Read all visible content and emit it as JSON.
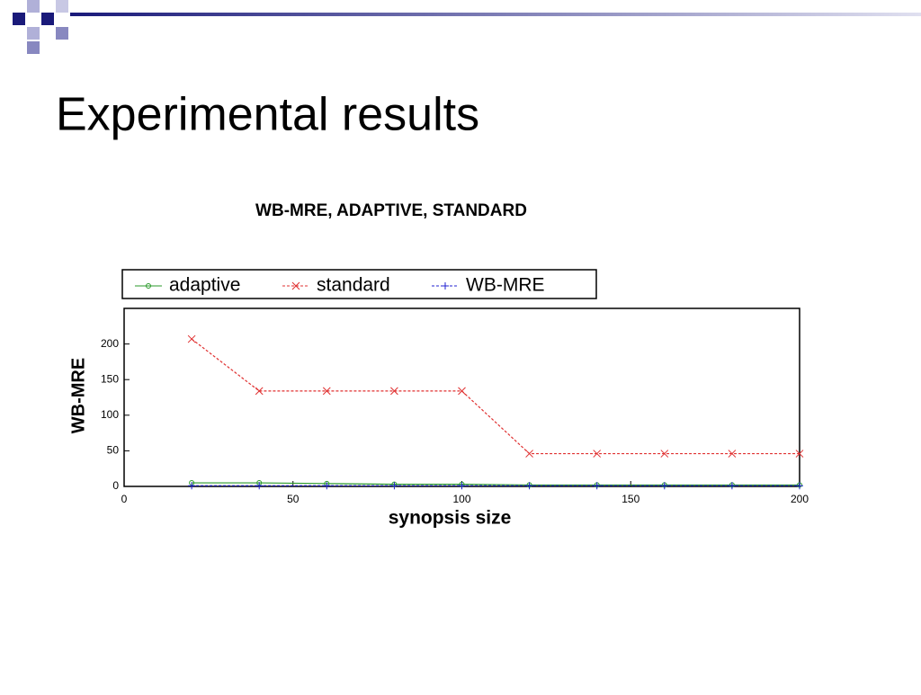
{
  "slide": {
    "title": "Experimental results"
  },
  "chart_data": {
    "type": "line",
    "title": "WB-MRE, ADAPTIVE, STANDARD",
    "x_label": "synopsis size",
    "y_label": "WB-MRE",
    "x": [
      20,
      40,
      60,
      80,
      100,
      120,
      140,
      160,
      180,
      200
    ],
    "series": [
      {
        "name": "adaptive",
        "color": "#2a9a2a",
        "marker": "circle",
        "dash": false,
        "values": [
          5,
          5,
          4,
          3,
          3,
          2,
          2,
          2,
          2,
          2
        ]
      },
      {
        "name": "standard",
        "color": "#e03030",
        "marker": "x",
        "dash": true,
        "values": [
          207,
          134,
          134,
          134,
          134,
          46,
          46,
          46,
          46,
          46
        ]
      },
      {
        "name": "WB-MRE",
        "color": "#2020d0",
        "marker": "plus",
        "dash": true,
        "values": [
          1,
          1,
          1,
          1,
          1,
          1,
          1,
          1,
          1,
          1
        ]
      }
    ],
    "xlim": [
      0,
      200
    ],
    "xticks": [
      0,
      50,
      100,
      150,
      200
    ],
    "ylim": [
      0,
      250
    ],
    "yticks": [
      0,
      50,
      100,
      150,
      200
    ],
    "legend": "top"
  }
}
